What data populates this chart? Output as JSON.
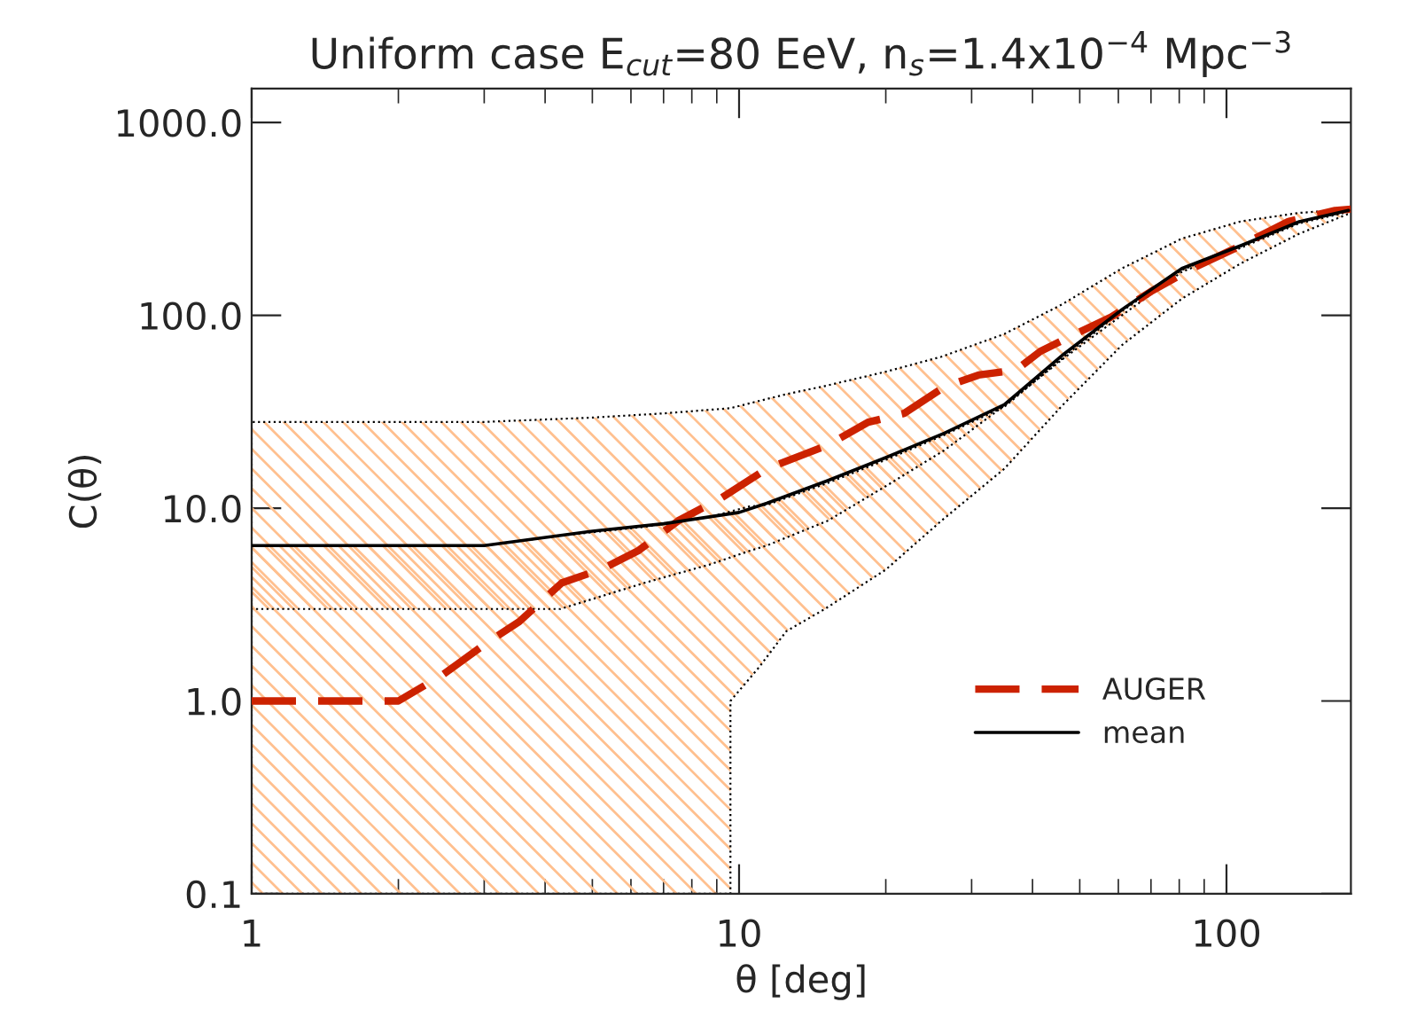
{
  "chart_data": {
    "type": "line",
    "title": "Uniform case E$_{cut}$=80 EeV, n$_{s}$=1.4x10$^{−4}$ Mpc$^{−3}$",
    "xlabel": "θ [deg]",
    "ylabel": "C(θ)",
    "log": "xy",
    "xlim": [
      1,
      180
    ],
    "ylim": [
      0.1,
      1500
    ],
    "xticks": [
      1,
      10,
      100
    ],
    "yticks": [
      {
        "value": 0.1,
        "label": "0.1"
      },
      {
        "value": 1,
        "label": "1.0"
      },
      {
        "value": 10,
        "label": "10.0"
      },
      {
        "value": 100,
        "label": "100.0"
      },
      {
        "value": 1000,
        "label": "1000.0"
      }
    ],
    "grid": false,
    "legend": "lower right",
    "series": [
      {
        "color": "#ffc08f",
        "x": [
          1,
          3,
          5,
          7,
          9.6,
          9.6,
          11,
          12.5,
          15,
          20,
          26,
          35,
          46,
          61,
          81,
          107,
          141,
          180
        ],
        "values": [
          null,
          null,
          null,
          null,
          null,
          null,
          null,
          null,
          null,
          null,
          null,
          null,
          null,
          null,
          null,
          null,
          null,
          null
        ],
        "upper": [
          28,
          28,
          29.5,
          31,
          33,
          33,
          36,
          39,
          43,
          51,
          61,
          80,
          114,
          175,
          250,
          307,
          340,
          355
        ],
        "lower": [
          0.1,
          0.1,
          0.1,
          0.1,
          0.1,
          1.0,
          1.5,
          2.3,
          3.0,
          4.8,
          8.6,
          16,
          34,
          70,
          122,
          186,
          265,
          340
        ]
      },
      {
        "color": "#ffc08f",
        "x": [
          1,
          3,
          4.3,
          6.4,
          8.7,
          10.5,
          11.4,
          15.2,
          20,
          26.4,
          35,
          46.4,
          61,
          81,
          107,
          141,
          178
        ],
        "values": [
          null,
          null,
          null,
          null,
          null,
          null,
          null,
          null,
          null,
          null,
          null,
          null,
          null,
          null,
          null,
          null,
          null
        ],
        "upper": [
          6.4,
          6.4,
          7.2,
          8.0,
          9.0,
          10.2,
          10.4,
          13.5,
          17.8,
          24,
          33.5,
          61,
          105,
          172,
          228,
          304,
          348
        ],
        "lower": [
          3.0,
          3.0,
          3.0,
          4.1,
          5.1,
          6.0,
          6.4,
          8.6,
          13,
          20,
          34,
          60,
          100,
          168,
          224,
          300,
          344
        ]
      },
      {
        "name": "AUGER",
        "color": "#cc2200",
        "line_style": "dashed",
        "x": [
          1,
          2,
          2.47,
          3,
          3.54,
          4.33,
          5.25,
          6.2,
          7.5,
          9.2,
          11.4,
          15.2,
          18.4,
          21.8,
          26.4,
          31,
          37,
          41.5,
          49,
          58,
          70,
          85,
          107,
          134,
          167,
          180
        ],
        "values": [
          1.0,
          1.0,
          1.37,
          1.96,
          2.58,
          4.1,
          4.85,
          6.0,
          8.6,
          11.3,
          16,
          21.2,
          27.9,
          31,
          42.6,
          49,
          52,
          65,
          80,
          98,
          133,
          175,
          230,
          307,
          350,
          355
        ]
      },
      {
        "name": "mean",
        "color": "#000000",
        "line_style": "solid",
        "x": [
          1,
          3,
          5,
          7,
          10,
          11.4,
          15.2,
          20,
          26.4,
          35,
          46.4,
          61,
          81,
          107,
          141,
          178
        ],
        "values": [
          6.4,
          6.4,
          7.6,
          8.3,
          9.5,
          10.6,
          13.9,
          18.3,
          24.5,
          34.4,
          63,
          107,
          175,
          230,
          306,
          350
        ]
      }
    ]
  }
}
